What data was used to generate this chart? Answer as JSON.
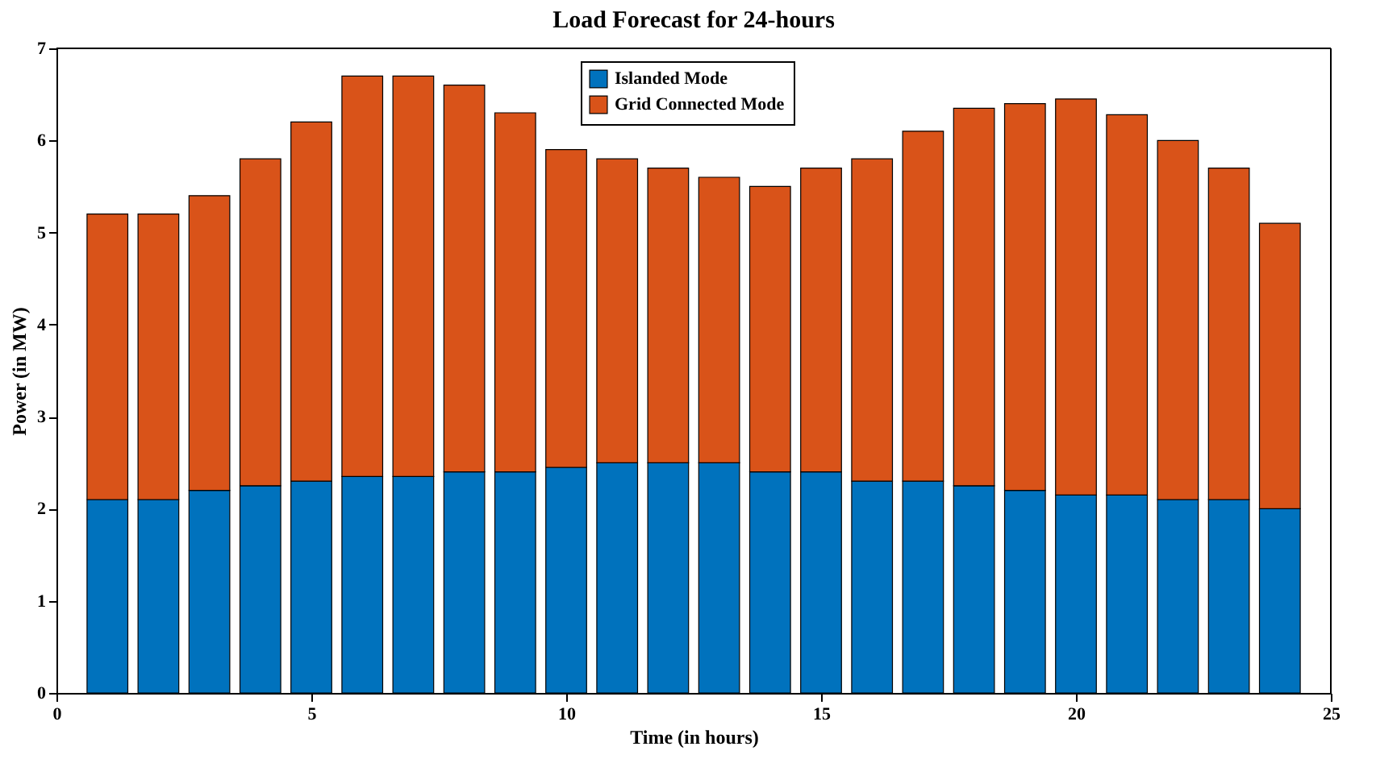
{
  "chart_data": {
    "type": "bar",
    "title": "Load Forecast for 24-hours",
    "xlabel": "Time (in hours)",
    "ylabel": "Power (in MW)",
    "x": [
      1,
      2,
      3,
      4,
      5,
      6,
      7,
      8,
      9,
      10,
      11,
      12,
      13,
      14,
      15,
      16,
      17,
      18,
      19,
      20,
      21,
      22,
      23,
      24
    ],
    "stacked": true,
    "series": [
      {
        "name": "Islanded Mode",
        "color": "#0072bd",
        "values": [
          2.1,
          2.1,
          2.2,
          2.25,
          2.3,
          2.35,
          2.35,
          2.4,
          2.4,
          2.45,
          2.5,
          2.5,
          2.5,
          2.4,
          2.4,
          2.3,
          2.3,
          2.25,
          2.2,
          2.15,
          2.15,
          2.1,
          2.1,
          2.0
        ]
      },
      {
        "name": "Grid Connected Mode",
        "color": "#d95319",
        "values": [
          3.1,
          3.1,
          3.2,
          3.55,
          3.9,
          4.35,
          4.35,
          4.2,
          3.9,
          3.45,
          3.3,
          3.2,
          3.1,
          3.1,
          3.3,
          3.5,
          3.8,
          4.1,
          4.2,
          4.3,
          4.13,
          3.9,
          3.6,
          3.1
        ]
      }
    ],
    "xlim": [
      0,
      25
    ],
    "xticks": [
      0,
      5,
      10,
      15,
      20,
      25
    ],
    "ylim": [
      0,
      7
    ],
    "yticks": [
      0,
      1,
      2,
      3,
      4,
      5,
      6,
      7
    ],
    "grid": false,
    "legend": "top"
  }
}
